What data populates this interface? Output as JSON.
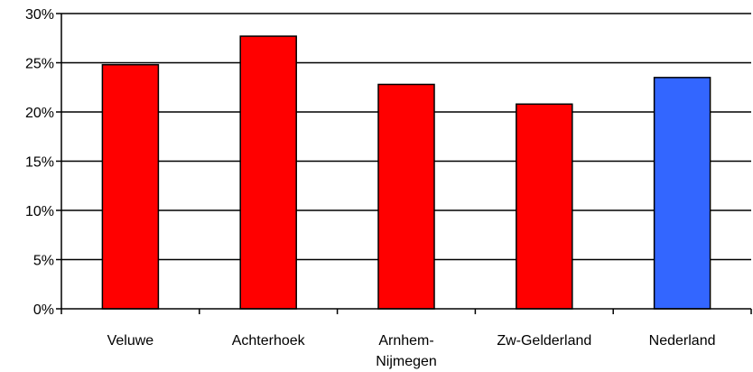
{
  "chart_data": {
    "type": "bar",
    "title": "",
    "xlabel": "",
    "ylabel": "",
    "categories": [
      "Veluwe",
      "Achterhoek",
      "Arnhem-Nijmegen",
      "Zw-Gelderland",
      "Nederland"
    ],
    "category_label_lines": [
      [
        "Veluwe"
      ],
      [
        "Achterhoek"
      ],
      [
        "Arnhem-",
        "Nijmegen"
      ],
      [
        "Zw-Gelderland"
      ],
      [
        "Nederland"
      ]
    ],
    "values": [
      24.8,
      27.7,
      22.8,
      20.8,
      23.5
    ],
    "value_unit": "%",
    "bar_colors": [
      "#ff0000",
      "#ff0000",
      "#ff0000",
      "#ff0000",
      "#3366ff"
    ],
    "ylim": [
      0,
      30
    ],
    "yticks": [
      0,
      5,
      10,
      15,
      20,
      25,
      30
    ],
    "ytick_labels": [
      "0%",
      "5%",
      "10%",
      "15%",
      "20%",
      "25%",
      "30%"
    ],
    "grid": true,
    "legend": "none"
  },
  "colors": {
    "region_bar": "#ff0000",
    "national_bar": "#3366ff",
    "gridline": "#000000",
    "top_border": "#808080"
  }
}
